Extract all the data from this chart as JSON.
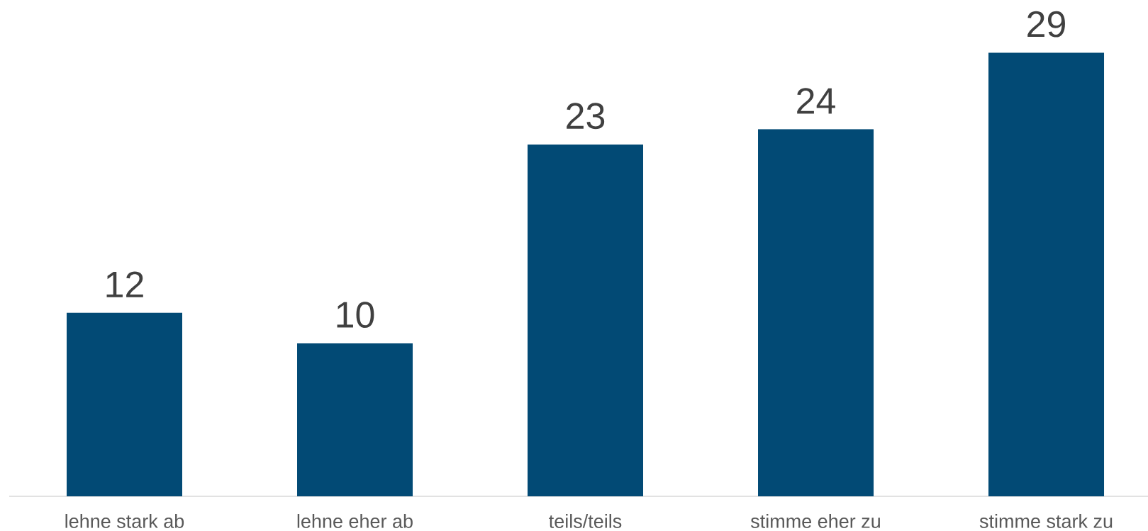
{
  "chart_data": {
    "type": "bar",
    "categories": [
      "lehne stark ab",
      "lehne eher ab",
      "teils/teils",
      "stimme eher zu",
      "stimme stark zu"
    ],
    "values": [
      12,
      10,
      23,
      24,
      29
    ],
    "color": "#024a75",
    "data_labels": true,
    "tick_labels": "x"
  }
}
